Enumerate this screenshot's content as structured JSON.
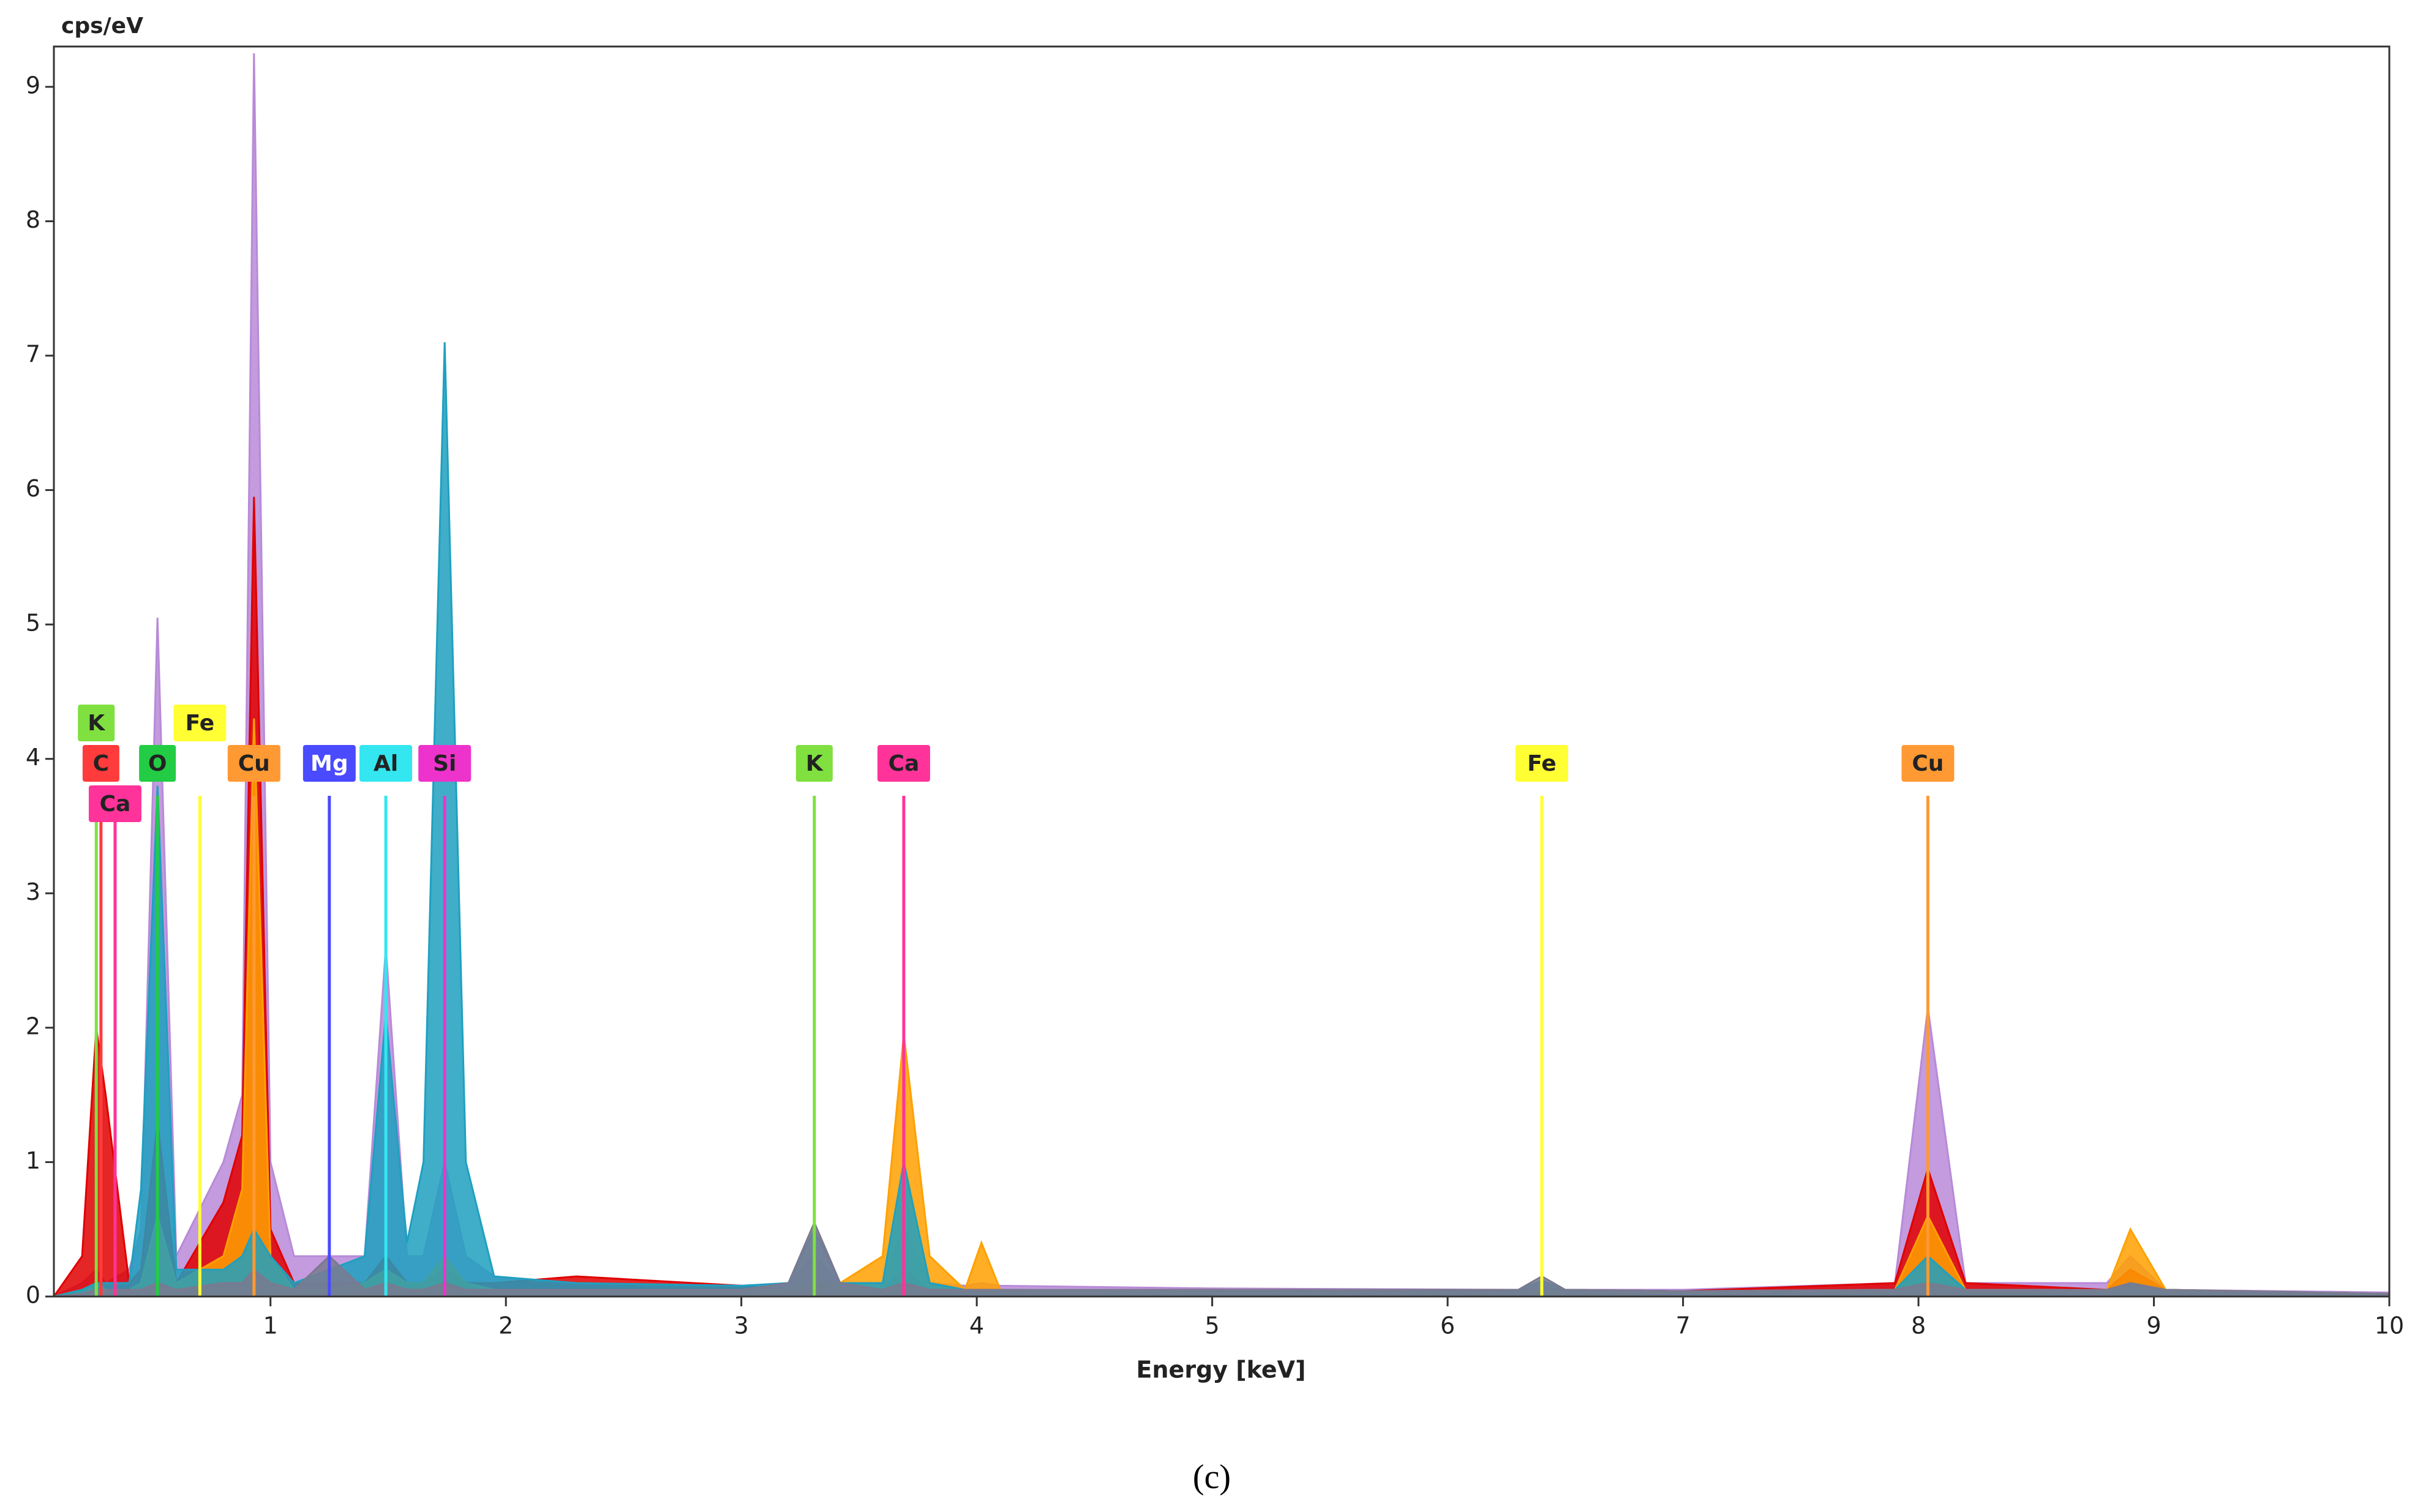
{
  "chart_data": {
    "type": "area",
    "y_label": "cps/eV",
    "x_label": "Energy [keV]",
    "caption": "(c)",
    "xlim": [
      0.08,
      10
    ],
    "ylim": [
      0,
      9.3
    ],
    "xticks": [
      1,
      2,
      3,
      4,
      5,
      6,
      7,
      8,
      9,
      10
    ],
    "yticks": [
      0,
      1,
      2,
      3,
      4,
      5,
      6,
      7,
      8,
      9
    ],
    "x": [
      0.08,
      0.2,
      0.26,
      0.3,
      0.4,
      0.45,
      0.52,
      0.6,
      0.8,
      0.88,
      0.93,
      1.0,
      1.1,
      1.25,
      1.4,
      1.49,
      1.58,
      1.65,
      1.74,
      1.83,
      1.95,
      2.3,
      3.0,
      3.2,
      3.31,
      3.42,
      3.6,
      3.69,
      3.8,
      3.95,
      4.02,
      4.1,
      5.0,
      6.3,
      6.4,
      6.5,
      7.0,
      7.9,
      8.04,
      8.2,
      8.8,
      8.9,
      9.05,
      10
    ],
    "series": [
      {
        "color": "#b88ad8",
        "values": [
          0,
          0.1,
          0.2,
          0.1,
          0.2,
          0.5,
          5.05,
          0.3,
          1.0,
          1.5,
          9.25,
          1.0,
          0.3,
          0.3,
          0.3,
          2.6,
          0.3,
          0.3,
          1.0,
          0.3,
          0.15,
          0.1,
          0.08,
          0.1,
          0.3,
          0.1,
          0.1,
          0.5,
          0.1,
          0.08,
          0.1,
          0.08,
          0.06,
          0.05,
          0.1,
          0.05,
          0.05,
          0.1,
          2.15,
          0.1,
          0.1,
          0.3,
          0.05,
          0.03
        ]
      },
      {
        "color": "#e00000",
        "values": [
          0,
          0.3,
          2.0,
          1.5,
          0.1,
          0.2,
          1.3,
          0.1,
          0.7,
          1.2,
          5.95,
          0.5,
          0.1,
          0.1,
          0.1,
          0.3,
          0.1,
          0.1,
          0.2,
          0.1,
          0.1,
          0.15,
          0.08,
          0.05,
          0.1,
          0.05,
          0.05,
          0.2,
          0.05,
          0.05,
          0.05,
          0.05,
          0.05,
          0.05,
          0.05,
          0.05,
          0.04,
          0.1,
          0.95,
          0.1,
          0.05,
          0.2,
          0.05,
          0.02
        ]
      },
      {
        "color": "#ffa000",
        "values": [
          0,
          0.05,
          0.1,
          0.05,
          0.05,
          0.1,
          0.6,
          0.1,
          0.3,
          0.8,
          4.3,
          0.3,
          0.05,
          0.05,
          0.1,
          0.2,
          0.1,
          0.1,
          0.3,
          0.1,
          0.05,
          0.05,
          0.05,
          0.05,
          0.1,
          0.1,
          0.3,
          1.95,
          0.3,
          0.05,
          0.4,
          0.05,
          0.03,
          0.03,
          0.05,
          0.03,
          0.03,
          0.05,
          0.6,
          0.05,
          0.05,
          0.5,
          0.05,
          0.02
        ]
      },
      {
        "color": "#1fa0c0",
        "values": [
          0,
          0.05,
          0.1,
          0.1,
          0.1,
          0.8,
          3.8,
          0.2,
          0.2,
          0.3,
          0.5,
          0.3,
          0.1,
          0.2,
          0.3,
          2.1,
          0.4,
          1.0,
          7.1,
          1.0,
          0.15,
          0.1,
          0.08,
          0.1,
          0.5,
          0.1,
          0.1,
          1.0,
          0.1,
          0.05,
          0.05,
          0.05,
          0.05,
          0.05,
          0.12,
          0.05,
          0.04,
          0.05,
          0.3,
          0.05,
          0.05,
          0.1,
          0.05,
          0.02
        ]
      },
      {
        "color": "#7a7a90",
        "values": [
          0,
          0.02,
          0.05,
          0.05,
          0.05,
          0.05,
          0.1,
          0.05,
          0.1,
          0.1,
          0.2,
          0.1,
          0.05,
          0.3,
          0.05,
          0.1,
          0.05,
          0.05,
          0.1,
          0.05,
          0.05,
          0.05,
          0.05,
          0.1,
          0.55,
          0.1,
          0.05,
          0.1,
          0.05,
          0.05,
          0.05,
          0.05,
          0.05,
          0.05,
          0.15,
          0.05,
          0.04,
          0.05,
          0.1,
          0.05,
          0.05,
          0.1,
          0.05,
          0.02
        ]
      }
    ],
    "markers": [
      {
        "label": "C",
        "x": 0.28,
        "color": "#ff3b3b"
      },
      {
        "label": "K",
        "x": 0.26,
        "color": "#7fe040"
      },
      {
        "label": "Ca",
        "x": 0.34,
        "color": "#ff3399"
      },
      {
        "label": "O",
        "x": 0.52,
        "color": "#22cc44"
      },
      {
        "label": "Fe",
        "x": 0.7,
        "color": "#ffff33"
      },
      {
        "label": "Cu",
        "x": 0.93,
        "color": "#ff9933"
      },
      {
        "label": "Mg",
        "x": 1.25,
        "color": "#4a4aff"
      },
      {
        "label": "Al",
        "x": 1.49,
        "color": "#33e6f0"
      },
      {
        "label": "Si",
        "x": 1.74,
        "color": "#ee33cc"
      },
      {
        "label": "K",
        "x": 3.31,
        "color": "#7fe040"
      },
      {
        "label": "Ca",
        "x": 3.69,
        "color": "#ff3399"
      },
      {
        "label": "Fe",
        "x": 6.4,
        "color": "#ffff33"
      },
      {
        "label": "Cu",
        "x": 8.04,
        "color": "#ff9933"
      }
    ]
  }
}
